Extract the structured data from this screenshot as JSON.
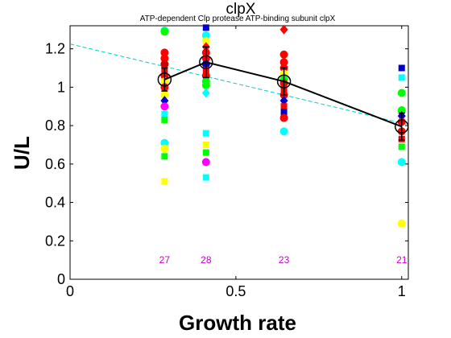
{
  "chart_data": {
    "type": "scatter",
    "title": "clpX",
    "subtitle": "ATP-dependent Clp protease ATP-binding subunit clpX",
    "xlabel": "Growth rate",
    "ylabel": "U/L",
    "xlim": [
      0,
      1.02
    ],
    "ylim": [
      0,
      1.32
    ],
    "xticks": [
      0,
      0.5,
      1
    ],
    "xtick_labels": [
      "0",
      "0.5",
      "1"
    ],
    "yticks": [
      0,
      0.2,
      0.4,
      0.6,
      0.8,
      1.0,
      1.2
    ],
    "ytick_labels": [
      "0",
      "0.2",
      "0.4",
      "0.6",
      "0.8",
      "1",
      "1.2"
    ],
    "grid": false,
    "trend_line": {
      "color": "#00cccc",
      "style": "dashed",
      "x": [
        0,
        1.02
      ],
      "y": [
        1.225,
        0.805
      ]
    },
    "mean_series": {
      "color": "#000000",
      "x": [
        0.285,
        0.41,
        0.645,
        1.0
      ],
      "y": [
        1.04,
        1.13,
        1.03,
        0.795
      ],
      "err": [
        0.06,
        0.08,
        0.07,
        0.07
      ]
    },
    "counts": [
      {
        "x": 0.285,
        "label": "27"
      },
      {
        "x": 0.41,
        "label": "28"
      },
      {
        "x": 0.645,
        "label": "23"
      },
      {
        "x": 1.0,
        "label": "21"
      }
    ],
    "points": [
      {
        "x": 0.285,
        "y": 1.295,
        "color": "#00ffff",
        "shape": "circle"
      },
      {
        "x": 0.285,
        "y": 1.29,
        "color": "#00ff00",
        "shape": "circle"
      },
      {
        "x": 0.285,
        "y": 1.18,
        "color": "#ff0000",
        "shape": "circle"
      },
      {
        "x": 0.285,
        "y": 1.15,
        "color": "#ff0000",
        "shape": "circle"
      },
      {
        "x": 0.285,
        "y": 1.12,
        "color": "#cc0000",
        "shape": "circle"
      },
      {
        "x": 0.285,
        "y": 1.09,
        "color": "#ff0000",
        "shape": "square"
      },
      {
        "x": 0.285,
        "y": 1.06,
        "color": "#ff0000",
        "shape": "circle"
      },
      {
        "x": 0.285,
        "y": 1.03,
        "color": "#ffff00",
        "shape": "circle"
      },
      {
        "x": 0.285,
        "y": 1.0,
        "color": "#ff0000",
        "shape": "circle"
      },
      {
        "x": 0.285,
        "y": 0.96,
        "color": "#ffff00",
        "shape": "circle"
      },
      {
        "x": 0.285,
        "y": 0.93,
        "color": "#0000cc",
        "shape": "diamond"
      },
      {
        "x": 0.285,
        "y": 0.9,
        "color": "#ff00ff",
        "shape": "circle"
      },
      {
        "x": 0.285,
        "y": 0.86,
        "color": "#00ffff",
        "shape": "square"
      },
      {
        "x": 0.285,
        "y": 0.83,
        "color": "#00ff00",
        "shape": "square"
      },
      {
        "x": 0.285,
        "y": 0.71,
        "color": "#00ffff",
        "shape": "circle"
      },
      {
        "x": 0.285,
        "y": 0.68,
        "color": "#ffff00",
        "shape": "circle"
      },
      {
        "x": 0.285,
        "y": 0.64,
        "color": "#00ff00",
        "shape": "square"
      },
      {
        "x": 0.285,
        "y": 0.51,
        "color": "#ffff00",
        "shape": "square"
      },
      {
        "x": 0.41,
        "y": 1.31,
        "color": "#0000cc",
        "shape": "square"
      },
      {
        "x": 0.41,
        "y": 1.27,
        "color": "#00ffff",
        "shape": "circle"
      },
      {
        "x": 0.41,
        "y": 1.24,
        "color": "#ffff00",
        "shape": "circle"
      },
      {
        "x": 0.41,
        "y": 1.21,
        "color": "#ff0000",
        "shape": "diamond"
      },
      {
        "x": 0.41,
        "y": 1.18,
        "color": "#ff0000",
        "shape": "circle"
      },
      {
        "x": 0.41,
        "y": 1.15,
        "color": "#ff0000",
        "shape": "circle"
      },
      {
        "x": 0.41,
        "y": 1.12,
        "color": "#0000cc",
        "shape": "circle"
      },
      {
        "x": 0.41,
        "y": 1.09,
        "color": "#ff0000",
        "shape": "square"
      },
      {
        "x": 0.41,
        "y": 1.06,
        "color": "#ff0000",
        "shape": "circle"
      },
      {
        "x": 0.41,
        "y": 1.03,
        "color": "#00ff00",
        "shape": "circle"
      },
      {
        "x": 0.41,
        "y": 1.01,
        "color": "#00ff00",
        "shape": "circle"
      },
      {
        "x": 0.41,
        "y": 0.97,
        "color": "#00ffff",
        "shape": "diamond"
      },
      {
        "x": 0.41,
        "y": 0.76,
        "color": "#00ffff",
        "shape": "square"
      },
      {
        "x": 0.41,
        "y": 0.7,
        "color": "#ffff00",
        "shape": "square"
      },
      {
        "x": 0.41,
        "y": 0.66,
        "color": "#00ff00",
        "shape": "square"
      },
      {
        "x": 0.41,
        "y": 0.61,
        "color": "#ff00ff",
        "shape": "circle"
      },
      {
        "x": 0.41,
        "y": 0.53,
        "color": "#00ffff",
        "shape": "square"
      },
      {
        "x": 0.645,
        "y": 1.3,
        "color": "#ff0000",
        "shape": "diamond"
      },
      {
        "x": 0.645,
        "y": 1.17,
        "color": "#ff0000",
        "shape": "circle"
      },
      {
        "x": 0.645,
        "y": 1.13,
        "color": "#ff0000",
        "shape": "circle"
      },
      {
        "x": 0.645,
        "y": 1.1,
        "color": "#ff0000",
        "shape": "circle"
      },
      {
        "x": 0.645,
        "y": 1.07,
        "color": "#ffff00",
        "shape": "circle"
      },
      {
        "x": 0.645,
        "y": 1.04,
        "color": "#00ff00",
        "shape": "circle"
      },
      {
        "x": 0.645,
        "y": 1.02,
        "color": "#ff0000",
        "shape": "circle"
      },
      {
        "x": 0.645,
        "y": 0.99,
        "color": "#ff0000",
        "shape": "square"
      },
      {
        "x": 0.645,
        "y": 0.96,
        "color": "#ff0000",
        "shape": "circle"
      },
      {
        "x": 0.645,
        "y": 0.93,
        "color": "#0000cc",
        "shape": "diamond"
      },
      {
        "x": 0.645,
        "y": 0.9,
        "color": "#ff0000",
        "shape": "square"
      },
      {
        "x": 0.645,
        "y": 0.87,
        "color": "#0000cc",
        "shape": "square"
      },
      {
        "x": 0.645,
        "y": 0.84,
        "color": "#ff0000",
        "shape": "circle"
      },
      {
        "x": 0.645,
        "y": 0.77,
        "color": "#00ffff",
        "shape": "circle"
      },
      {
        "x": 1.0,
        "y": 1.1,
        "color": "#0000cc",
        "shape": "square"
      },
      {
        "x": 1.0,
        "y": 1.05,
        "color": "#00ffff",
        "shape": "square"
      },
      {
        "x": 1.0,
        "y": 0.97,
        "color": "#00ff00",
        "shape": "circle"
      },
      {
        "x": 1.0,
        "y": 0.88,
        "color": "#00ff00",
        "shape": "circle"
      },
      {
        "x": 1.0,
        "y": 0.85,
        "color": "#0000cc",
        "shape": "diamond"
      },
      {
        "x": 1.0,
        "y": 0.82,
        "color": "#ff0000",
        "shape": "circle"
      },
      {
        "x": 1.0,
        "y": 0.77,
        "color": "#ff0000",
        "shape": "circle"
      },
      {
        "x": 1.0,
        "y": 0.73,
        "color": "#ff0000",
        "shape": "square"
      },
      {
        "x": 1.0,
        "y": 0.69,
        "color": "#00ff00",
        "shape": "square"
      },
      {
        "x": 1.0,
        "y": 0.61,
        "color": "#00ffff",
        "shape": "circle"
      },
      {
        "x": 1.0,
        "y": 0.29,
        "color": "#ffff00",
        "shape": "circle"
      }
    ]
  }
}
